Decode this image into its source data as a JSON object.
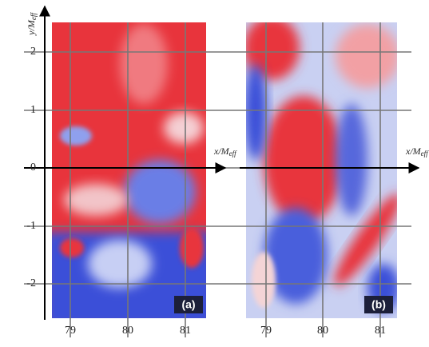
{
  "y_axis": {
    "main": "y/M",
    "sub": "eff"
  },
  "y_ticks": [
    "2",
    "1",
    "0",
    "-1",
    "-2"
  ],
  "panels": [
    {
      "label": "(a)",
      "x_axis": {
        "main": "x/M",
        "sub": "eff"
      },
      "x_ticks": [
        "79",
        "80",
        "81"
      ]
    },
    {
      "label": "(b)",
      "x_axis": {
        "main": "x/M",
        "sub": "eff"
      },
      "x_ticks": [
        "79",
        "80",
        "81"
      ]
    }
  ]
}
